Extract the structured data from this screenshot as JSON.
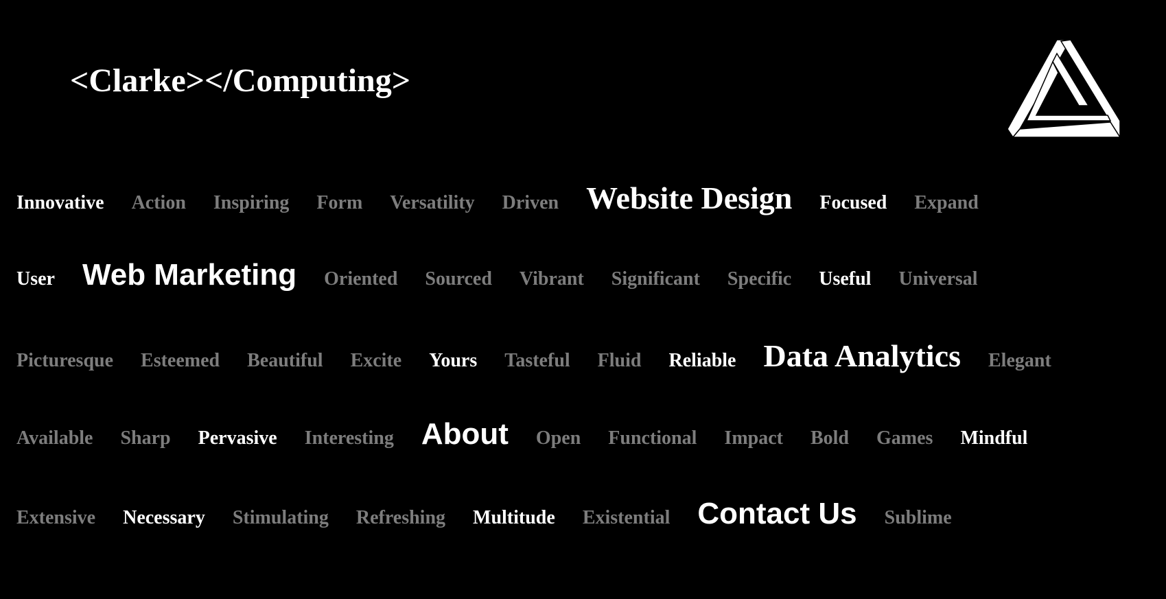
{
  "site": {
    "title": "<Clarke></Computing>"
  },
  "logo": {
    "icon": "impossible-triangle-logo"
  },
  "colors": {
    "background": "#000000",
    "bright_word": "#ffffff",
    "dim_word": "#7d7d7d"
  },
  "rows": [
    {
      "words": [
        {
          "text": "Innovative",
          "style": "light"
        },
        {
          "text": "Action",
          "style": "dim"
        },
        {
          "text": "Inspiring",
          "style": "dim"
        },
        {
          "text": "Form",
          "style": "dim"
        },
        {
          "text": "Versatility",
          "style": "dim"
        },
        {
          "text": "Driven",
          "style": "dim"
        },
        {
          "text": "Website Design",
          "style": "link"
        },
        {
          "text": "Focused",
          "style": "light"
        },
        {
          "text": "Expand",
          "style": "dim"
        }
      ]
    },
    {
      "words": [
        {
          "text": "User",
          "style": "light"
        },
        {
          "text": "Web Marketing",
          "style": "link"
        },
        {
          "text": "Oriented",
          "style": "dim"
        },
        {
          "text": "Sourced",
          "style": "dim"
        },
        {
          "text": "Vibrant",
          "style": "dim"
        },
        {
          "text": "Significant",
          "style": "dim"
        },
        {
          "text": "Specific",
          "style": "dim"
        },
        {
          "text": "Useful",
          "style": "light"
        },
        {
          "text": "Universal",
          "style": "dim"
        }
      ]
    },
    {
      "words": [
        {
          "text": "Picturesque",
          "style": "dim"
        },
        {
          "text": "Esteemed",
          "style": "dim"
        },
        {
          "text": "Beautiful",
          "style": "dim"
        },
        {
          "text": "Excite",
          "style": "dim"
        },
        {
          "text": "Yours",
          "style": "light"
        },
        {
          "text": "Tasteful",
          "style": "dim"
        },
        {
          "text": "Fluid",
          "style": "dim"
        },
        {
          "text": "Reliable",
          "style": "light"
        },
        {
          "text": "Data Analytics",
          "style": "link"
        },
        {
          "text": "Elegant",
          "style": "dim"
        }
      ]
    },
    {
      "words": [
        {
          "text": "Available",
          "style": "dim"
        },
        {
          "text": "Sharp",
          "style": "dim"
        },
        {
          "text": "Pervasive",
          "style": "light"
        },
        {
          "text": "Interesting",
          "style": "dim"
        },
        {
          "text": "About",
          "style": "link"
        },
        {
          "text": "Open",
          "style": "dim"
        },
        {
          "text": "Functional",
          "style": "dim"
        },
        {
          "text": "Impact",
          "style": "dim"
        },
        {
          "text": "Bold",
          "style": "dim"
        },
        {
          "text": "Games",
          "style": "dim"
        },
        {
          "text": "Mindful",
          "style": "light"
        }
      ]
    },
    {
      "words": [
        {
          "text": "Extensive",
          "style": "dim"
        },
        {
          "text": "Necessary",
          "style": "light"
        },
        {
          "text": "Stimulating",
          "style": "dim"
        },
        {
          "text": "Refreshing",
          "style": "dim"
        },
        {
          "text": "Multitude",
          "style": "light"
        },
        {
          "text": "Existential",
          "style": "dim"
        },
        {
          "text": "Contact Us",
          "style": "link"
        },
        {
          "text": "Sublime",
          "style": "dim"
        }
      ]
    }
  ]
}
